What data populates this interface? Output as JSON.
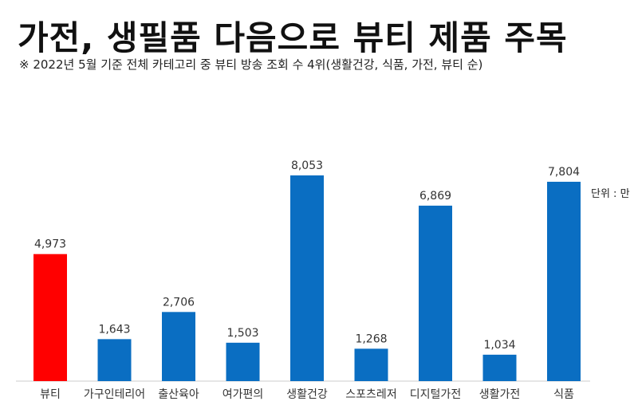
{
  "header": {
    "title": "가전, 생필품 다음으로 뷰티 제품 주목",
    "subtitle": "※ 2022년 5월 기준 전체 카테고리 중 뷰티 방송 조회 수 4위(생활건강, 식품, 가전, 뷰티 순)"
  },
  "unit_label": "단위 : 만",
  "colors": {
    "highlight": "#ff0000",
    "bar": "#0a6ec2",
    "baseline": "#cccccc"
  },
  "chart_data": {
    "type": "bar",
    "title": "가전, 생필품 다음으로 뷰티 제품 주목",
    "subtitle": "※ 2022년 5월 기준 전체 카테고리 중 뷰티 방송 조회 수 4위(생활건강, 식품, 가전, 뷰티 순)",
    "unit": "단위 : 만",
    "categories": [
      "뷰티",
      "가구인테리어",
      "출산육아",
      "여가편의",
      "생활건강",
      "스포츠레저",
      "디지털가전",
      "생활가전",
      "식품"
    ],
    "values": [
      4973,
      1643,
      2706,
      1503,
      8053,
      1268,
      6869,
      1034,
      7804
    ],
    "value_labels": [
      "4,973",
      "1,643",
      "2,706",
      "1,503",
      "8,053",
      "1,268",
      "6,869",
      "1,034",
      "7,804"
    ],
    "highlight_index": 0,
    "ylim": [
      0,
      8053
    ],
    "grid": false,
    "legend": "none"
  }
}
